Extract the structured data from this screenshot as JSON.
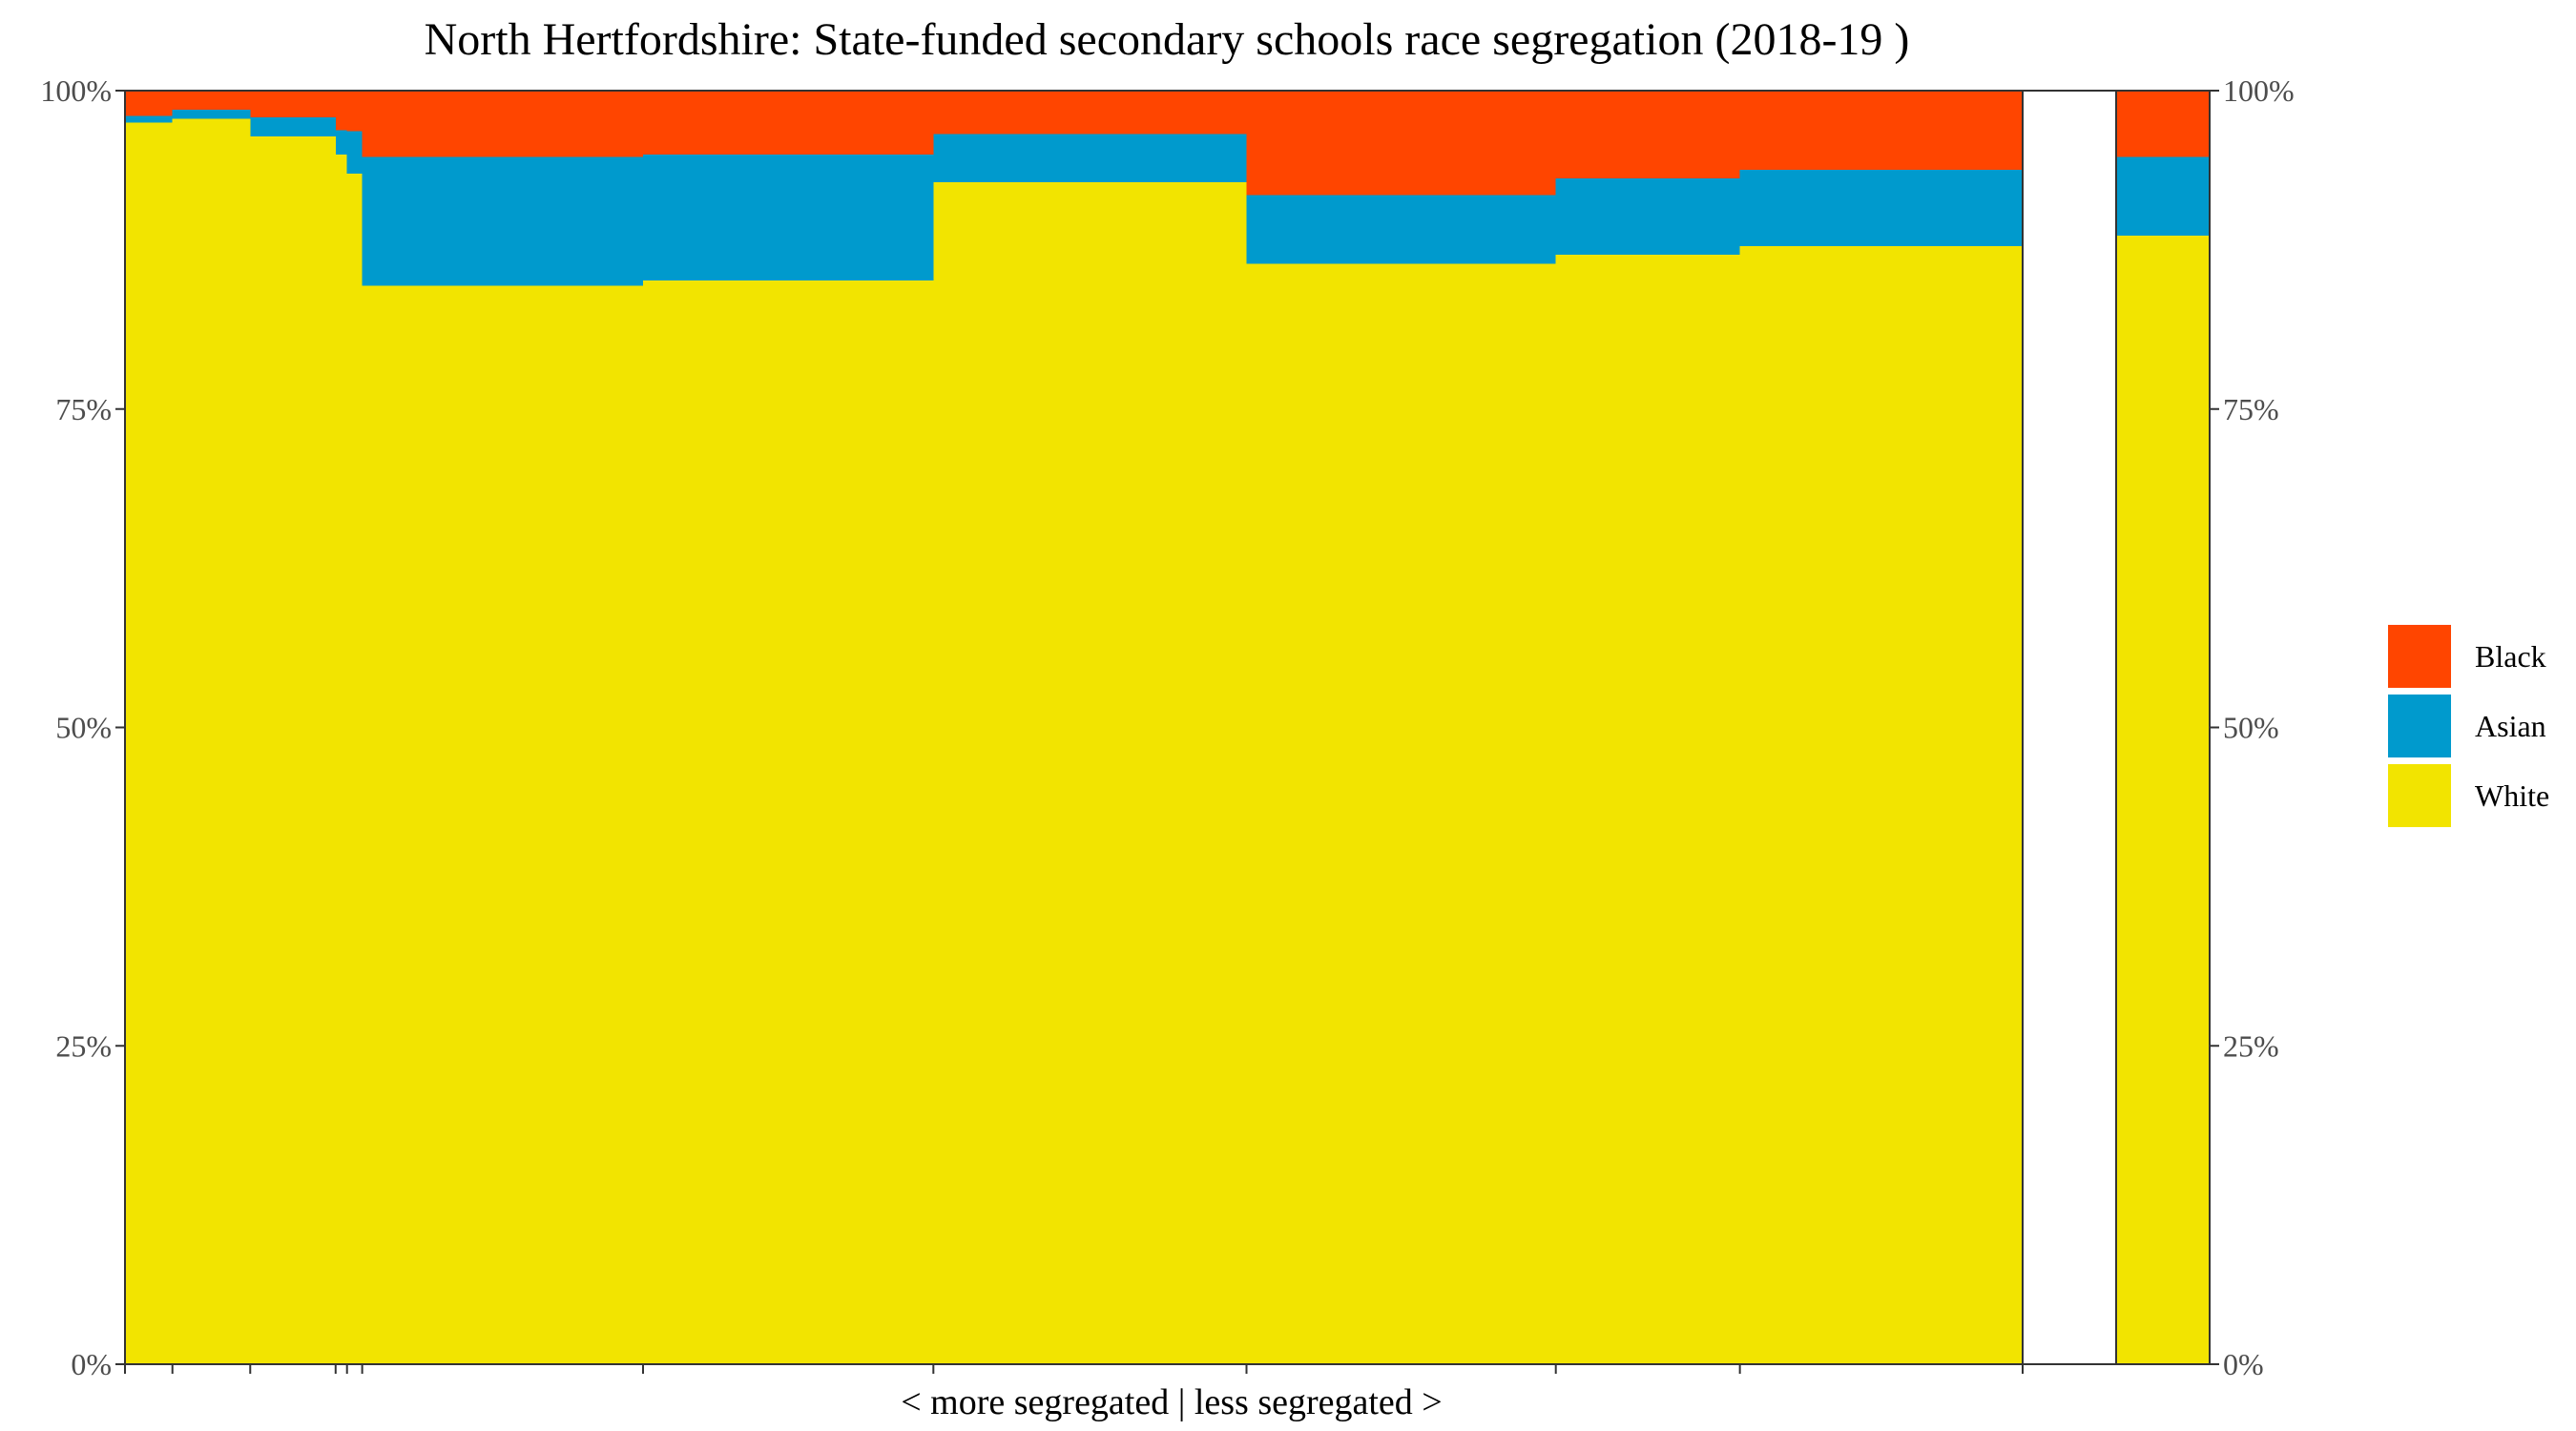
{
  "chart_data": {
    "type": "mosaic",
    "title": "North Hertfordshire: State-funded secondary schools race segregation (2018-19 )",
    "xlabel": "< more segregated | less segregated >",
    "ylim": [
      0,
      100
    ],
    "y_ticks": [
      "0%",
      "25%",
      "50%",
      "75%",
      "100%"
    ],
    "grid": false,
    "legend": {
      "position": "right",
      "items": [
        {
          "name": "Black",
          "color": "#FF4500"
        },
        {
          "name": "Asian",
          "color": "#009ACD"
        },
        {
          "name": "White",
          "color": "#F2E400"
        }
      ]
    },
    "colors": {
      "White": "#F2E400",
      "Asian": "#009ACD",
      "Black": "#FF4500"
    },
    "x_range": [
      0,
      100
    ],
    "x_ticks": [
      0,
      2.5,
      6.6,
      11.1,
      11.7,
      12.5,
      27.3,
      42.6,
      59.1,
      75.4,
      85.1,
      100
    ],
    "schools": [
      {
        "x_start": 0.0,
        "x_end": 2.5,
        "white": 97.5,
        "asian": 0.5,
        "black": 2.0
      },
      {
        "x_start": 2.5,
        "x_end": 6.6,
        "white": 97.8,
        "asian": 0.7,
        "black": 1.5
      },
      {
        "x_start": 6.6,
        "x_end": 11.1,
        "white": 96.4,
        "asian": 1.5,
        "black": 2.1
      },
      {
        "x_start": 11.1,
        "x_end": 11.7,
        "white": 95.0,
        "asian": 1.9,
        "black": 3.1
      },
      {
        "x_start": 11.7,
        "x_end": 12.5,
        "white": 93.5,
        "asian": 3.3,
        "black": 3.2
      },
      {
        "x_start": 12.5,
        "x_end": 27.3,
        "white": 84.7,
        "asian": 10.1,
        "black": 5.2
      },
      {
        "x_start": 27.3,
        "x_end": 42.6,
        "white": 85.1,
        "asian": 9.9,
        "black": 5.0
      },
      {
        "x_start": 42.6,
        "x_end": 59.1,
        "white": 92.8,
        "asian": 3.8,
        "black": 3.4
      },
      {
        "x_start": 59.1,
        "x_end": 75.4,
        "white": 86.4,
        "asian": 5.4,
        "black": 8.2
      },
      {
        "x_start": 75.4,
        "x_end": 85.1,
        "white": 87.1,
        "asian": 6.0,
        "black": 6.9
      },
      {
        "x_start": 85.1,
        "x_end": 100.0,
        "white": 87.8,
        "asian": 6.0,
        "black": 6.2
      }
    ],
    "overall": {
      "white": 88.6,
      "asian": 6.2,
      "black": 5.2
    }
  }
}
